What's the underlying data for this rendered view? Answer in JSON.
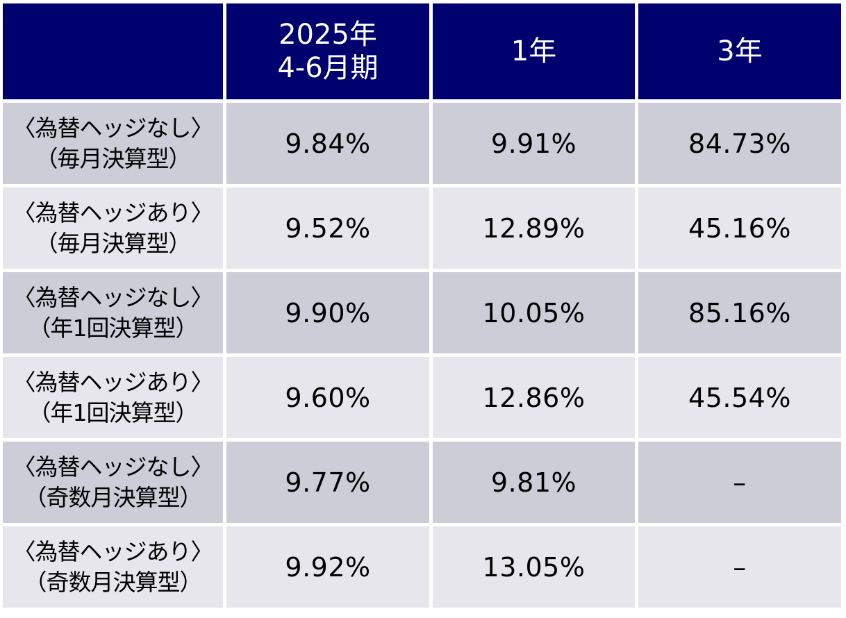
{
  "table": {
    "headers": {
      "label": "",
      "quarter_line1": "2025年",
      "quarter_line2": "4-6月期",
      "one_year": "1年",
      "three_year": "3年"
    },
    "rows": [
      {
        "label_line1": "〈為替ヘッジなし〉",
        "label_line2": "（毎月決算型）",
        "quarter": "9.84%",
        "one_year": "9.91%",
        "three_year": "84.73%"
      },
      {
        "label_line1": "〈為替ヘッジあり〉",
        "label_line2": "（毎月決算型）",
        "quarter": "9.52%",
        "one_year": "12.89%",
        "three_year": "45.16%"
      },
      {
        "label_line1": "〈為替ヘッジなし〉",
        "label_line2": "（年1回決算型）",
        "quarter": "9.90%",
        "one_year": "10.05%",
        "three_year": "85.16%"
      },
      {
        "label_line1": "〈為替ヘッジあり〉",
        "label_line2": "（年1回決算型）",
        "quarter": "9.60%",
        "one_year": "12.86%",
        "three_year": "45.54%"
      },
      {
        "label_line1": "〈為替ヘッジなし〉",
        "label_line2": "（奇数月決算型）",
        "quarter": "9.77%",
        "one_year": "9.81%",
        "three_year": "–"
      },
      {
        "label_line1": "〈為替ヘッジあり〉",
        "label_line2": "（奇数月決算型）",
        "quarter": "9.92%",
        "one_year": "13.05%",
        "three_year": "–"
      }
    ]
  },
  "colors": {
    "header_bg": "#00006e",
    "header_text": "#ffffff",
    "row_dark": "#cdcdd8",
    "row_light": "#e6e6ec"
  }
}
